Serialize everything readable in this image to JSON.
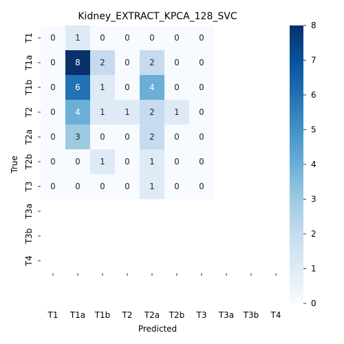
{
  "chart_data": {
    "type": "heatmap",
    "title": "Kidney_EXTRACT_KPCA_128_SVC",
    "xlabel": "Predicted",
    "ylabel": "True",
    "x_categories": [
      "T1",
      "T1a",
      "T1b",
      "T2",
      "T2a",
      "T2b",
      "T3",
      "T3a",
      "T3b",
      "T4"
    ],
    "y_categories": [
      "T1",
      "T1a",
      "T1b",
      "T2",
      "T2a",
      "T2b",
      "T3",
      "T3a",
      "T3b",
      "T4"
    ],
    "matrix": [
      [
        0,
        1,
        0,
        0,
        0,
        0,
        0,
        null,
        null,
        null
      ],
      [
        0,
        8,
        2,
        0,
        2,
        0,
        0,
        null,
        null,
        null
      ],
      [
        0,
        6,
        1,
        0,
        4,
        0,
        0,
        null,
        null,
        null
      ],
      [
        0,
        4,
        1,
        1,
        2,
        1,
        0,
        null,
        null,
        null
      ],
      [
        0,
        3,
        0,
        0,
        2,
        0,
        0,
        null,
        null,
        null
      ],
      [
        0,
        0,
        1,
        0,
        1,
        0,
        0,
        null,
        null,
        null
      ],
      [
        0,
        0,
        0,
        0,
        1,
        0,
        0,
        null,
        null,
        null
      ],
      [
        null,
        null,
        null,
        null,
        null,
        null,
        null,
        null,
        null,
        null
      ],
      [
        null,
        null,
        null,
        null,
        null,
        null,
        null,
        null,
        null,
        null
      ],
      [
        null,
        null,
        null,
        null,
        null,
        null,
        null,
        null,
        null,
        null
      ]
    ],
    "colorbar": {
      "min": 0,
      "max": 8,
      "ticks": [
        "0",
        "1",
        "2",
        "3",
        "4",
        "5",
        "6",
        "7",
        "8"
      ],
      "colormap": "Blues"
    }
  }
}
